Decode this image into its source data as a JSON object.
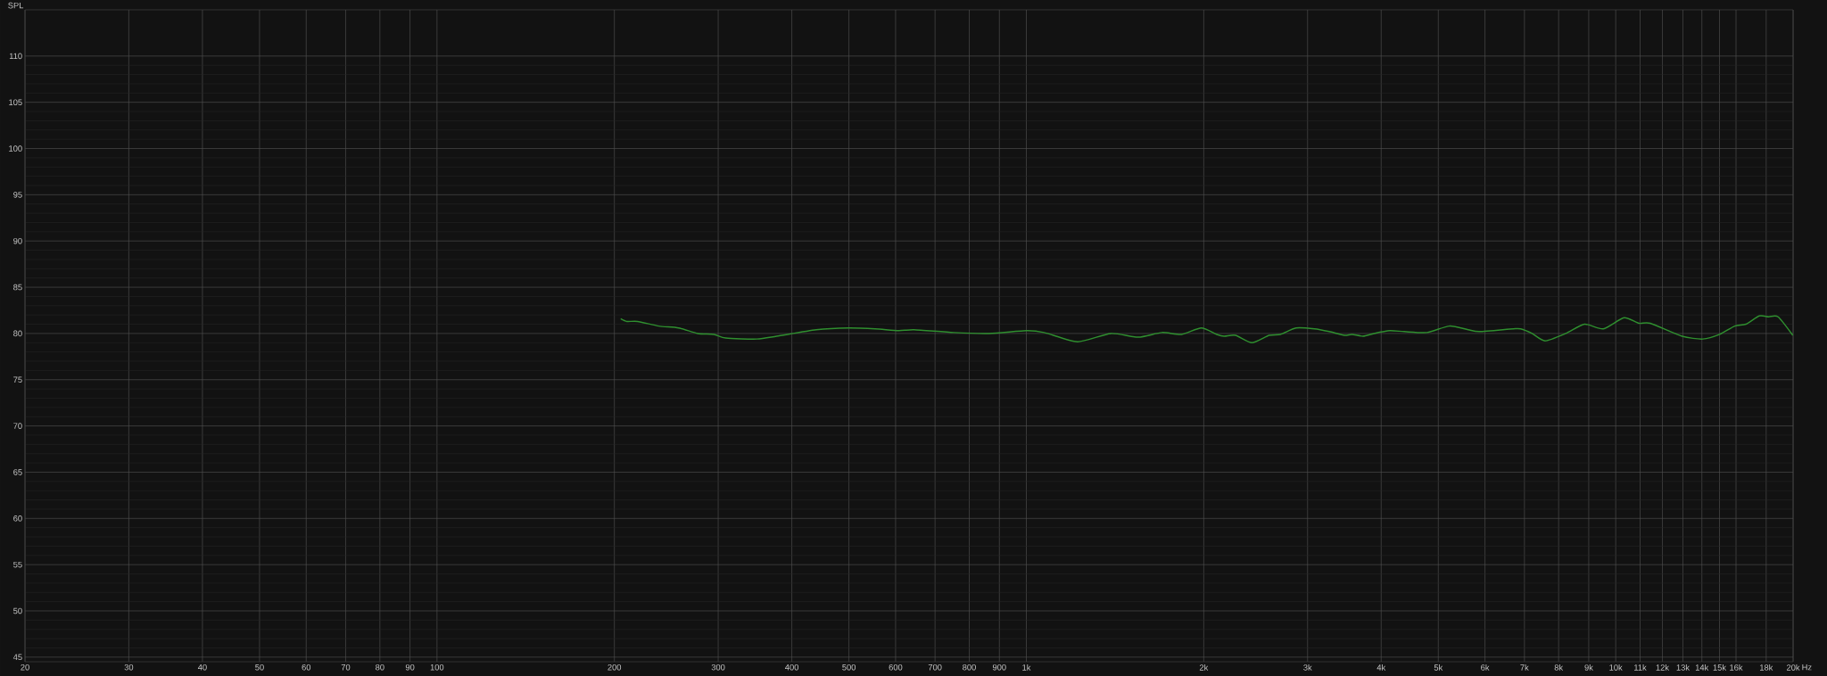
{
  "chart_data": {
    "type": "line",
    "ylabel": "SPL",
    "log": "x",
    "grid": true,
    "line_style": "solid",
    "xlim": [
      20,
      20000
    ],
    "ylim": [
      44.5,
      115
    ],
    "xticks": [
      20,
      30,
      40,
      50,
      60,
      70,
      80,
      90,
      100,
      200,
      300,
      400,
      500,
      600,
      700,
      800,
      900,
      {
        "value": 1000,
        "label": "1k"
      },
      {
        "value": 2000,
        "label": "2k"
      },
      {
        "value": 3000,
        "label": "3k"
      },
      {
        "value": 4000,
        "label": "4k"
      },
      {
        "value": 5000,
        "label": "5k"
      },
      {
        "value": 6000,
        "label": "6k"
      },
      {
        "value": 7000,
        "label": "7k"
      },
      {
        "value": 8000,
        "label": "8k"
      },
      {
        "value": 9000,
        "label": "9k"
      },
      {
        "value": 10000,
        "label": "10k"
      },
      {
        "value": 11000,
        "label": "11k"
      },
      {
        "value": 12000,
        "label": "12k"
      },
      {
        "value": 13000,
        "label": "13k"
      },
      {
        "value": 14000,
        "label": "14k"
      },
      {
        "value": 15000,
        "label": "15k"
      },
      {
        "value": 16000,
        "label": "16k"
      },
      {
        "value": 18000,
        "label": "18k"
      },
      {
        "value": 20000,
        "label": "20k"
      }
    ],
    "xlabel": "Hz",
    "yticks": [
      45,
      50,
      55,
      60,
      65,
      70,
      75,
      80,
      85,
      90,
      95,
      100,
      105,
      110
    ],
    "series": [
      {
        "color": "#2f8f2f",
        "x": [
          205,
          210,
          219,
          238,
          257,
          277,
          295,
          309,
          349,
          377,
          440,
          499,
          554,
          607,
          645,
          753,
          865,
          1000,
          1072,
          1221,
          1391,
          1549,
          1698,
          1834,
          1981,
          2104,
          2166,
          2264,
          2414,
          2582,
          2698,
          2867,
          3084,
          3266,
          3466,
          3569,
          3727,
          3890,
          4137,
          4379,
          4783,
          5222,
          5620,
          5874,
          6702,
          6899,
          7213,
          7588,
          8228,
          8854,
          9528,
          10328,
          10952,
          11445,
          12960,
          14051,
          15012,
          15920,
          16635,
          17513,
          18169,
          18859,
          19976
        ],
        "values": [
          81.6,
          81.3,
          81.3,
          80.8,
          80.6,
          80.0,
          79.9,
          79.5,
          79.4,
          79.7,
          80.4,
          80.6,
          80.5,
          80.3,
          80.4,
          80.1,
          80.0,
          80.3,
          80.1,
          79.1,
          80.0,
          79.6,
          80.1,
          79.9,
          80.6,
          79.9,
          79.7,
          79.8,
          79.0,
          79.8,
          79.9,
          80.6,
          80.5,
          80.2,
          79.8,
          79.9,
          79.7,
          80.0,
          80.3,
          80.2,
          80.1,
          80.8,
          80.4,
          80.2,
          80.5,
          80.5,
          80.0,
          79.2,
          80.0,
          81.0,
          80.5,
          81.7,
          81.1,
          81.1,
          79.7,
          79.4,
          79.9,
          80.8,
          81.0,
          81.9,
          81.8,
          81.8,
          79.8
        ]
      }
    ]
  }
}
